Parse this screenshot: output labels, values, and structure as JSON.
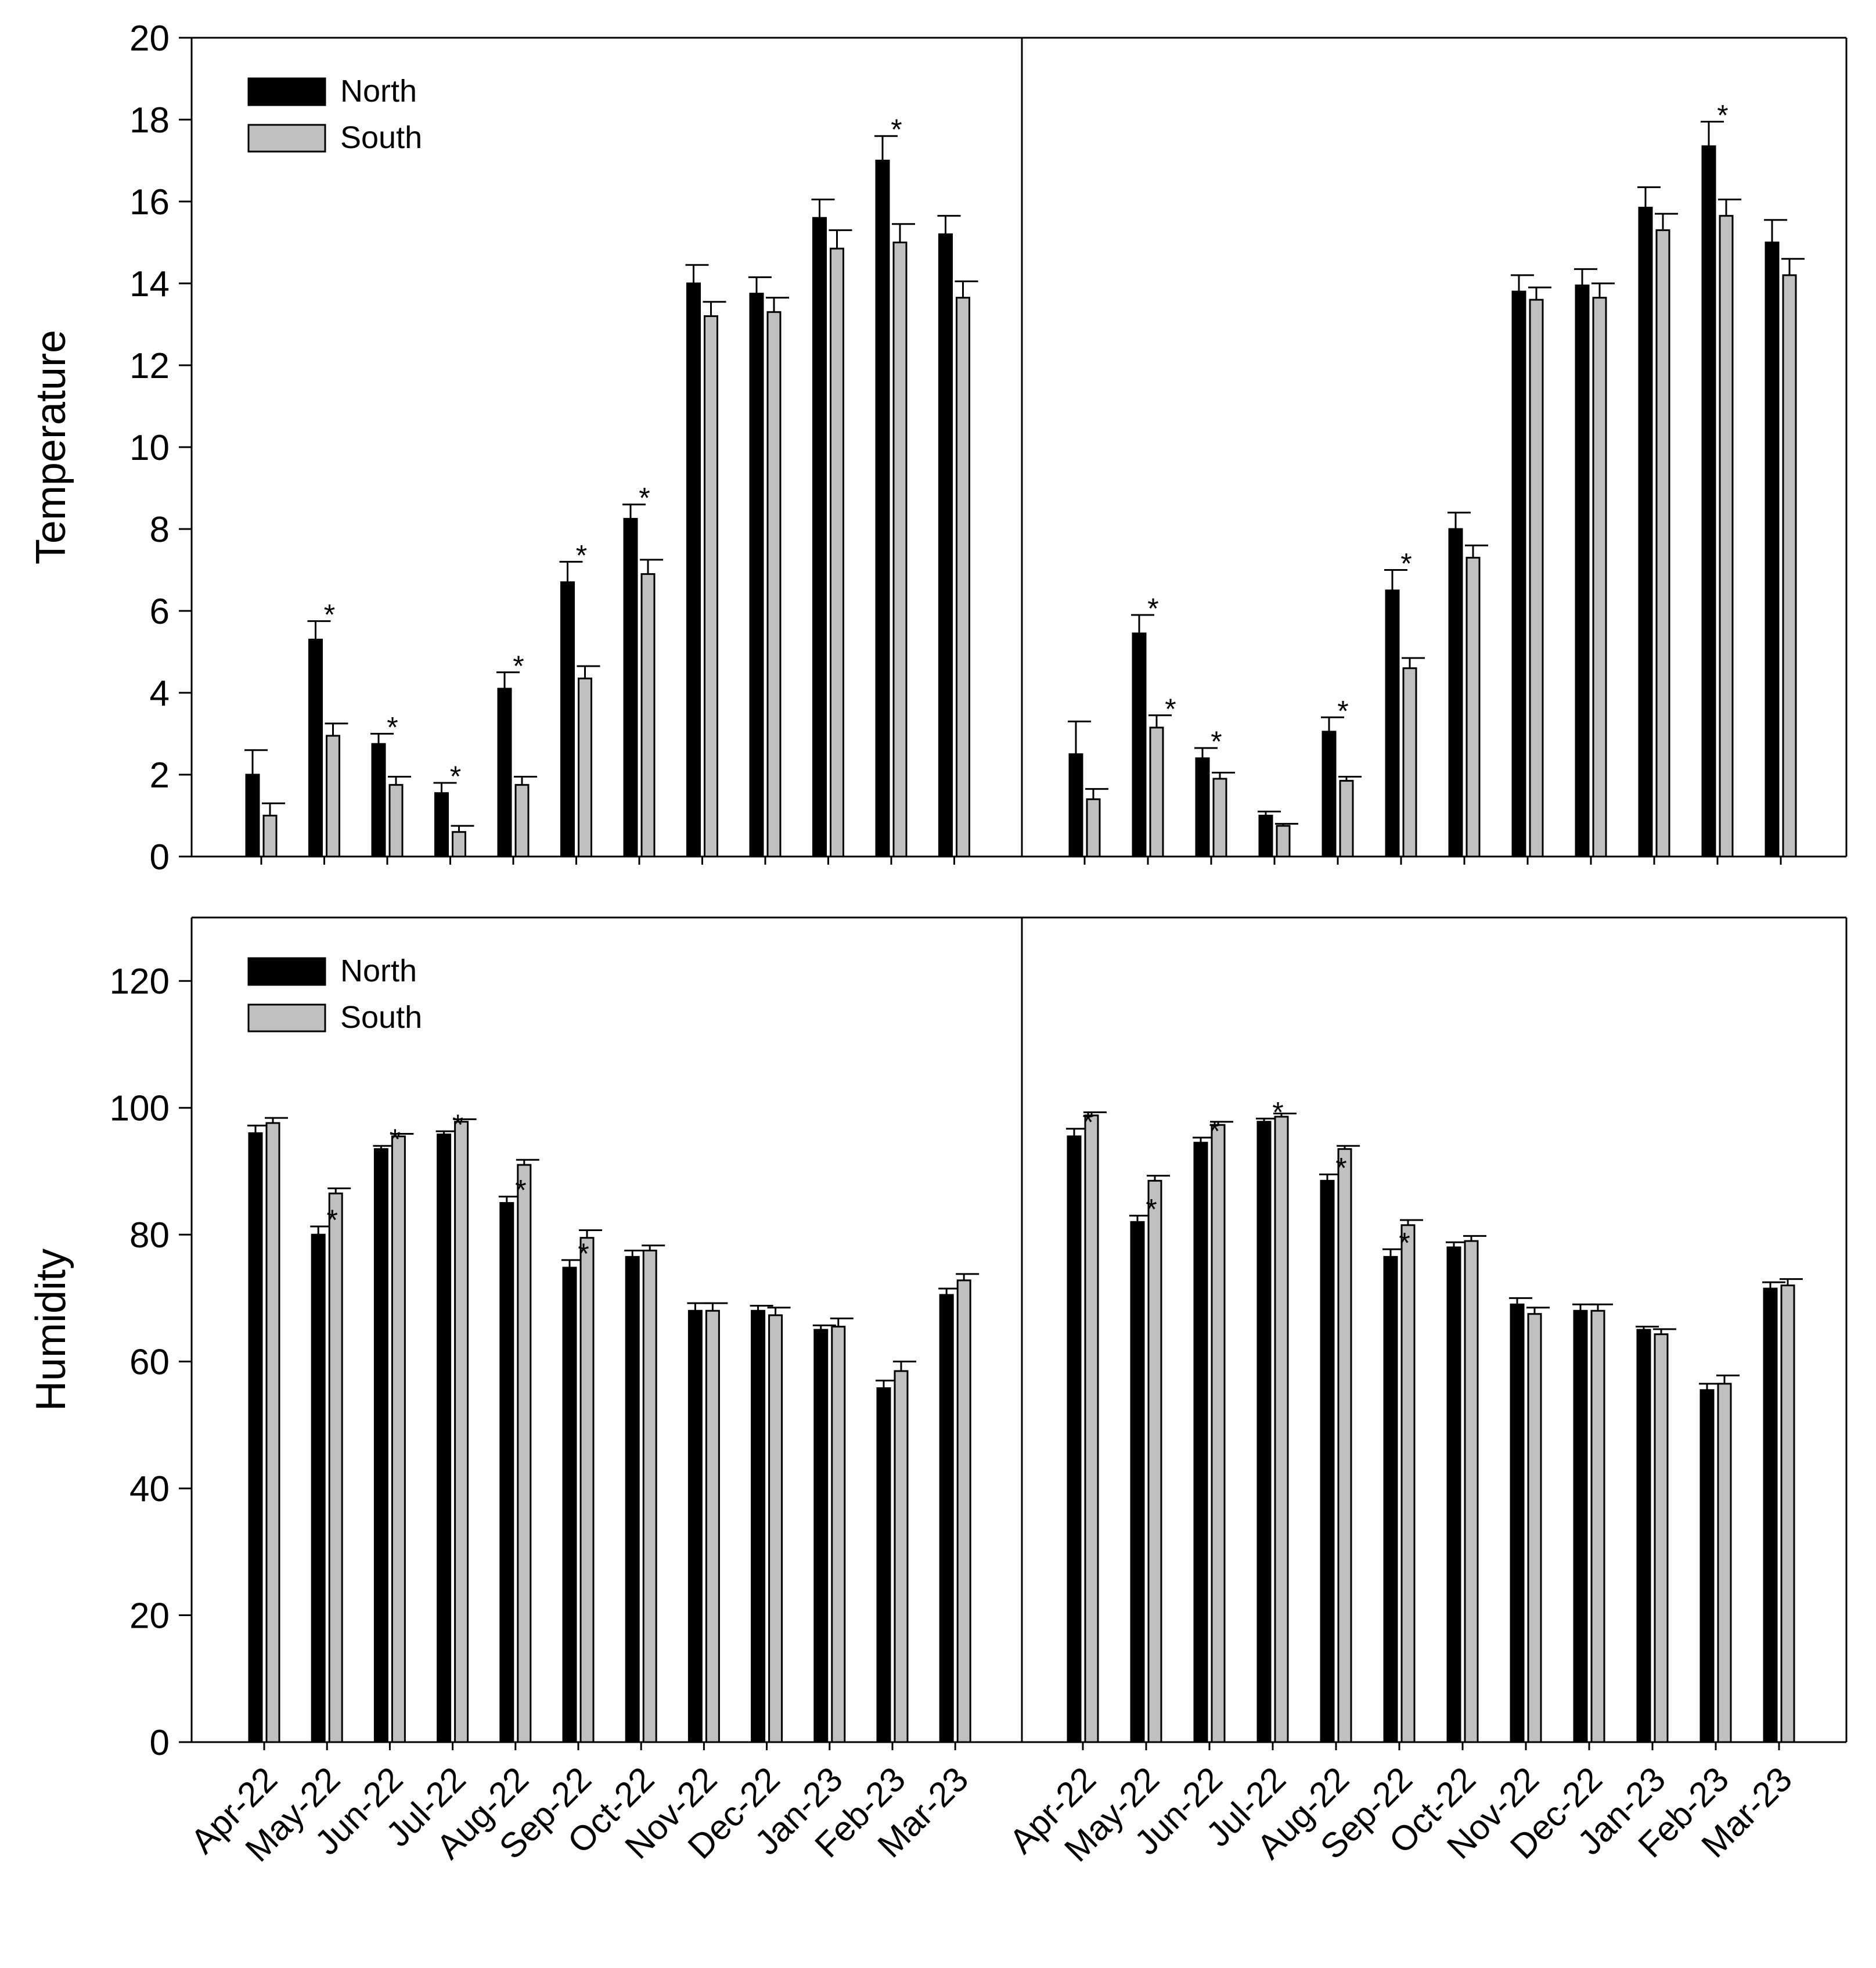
{
  "colors": {
    "north": "#000000",
    "south": "#c0c0c0",
    "axis": "#000000",
    "background": "#ffffff"
  },
  "chart_data": [
    {
      "type": "bar",
      "panel": "top-left",
      "ylabel": "Temperature",
      "ylim": [
        0,
        20
      ],
      "yticks": [
        0,
        2,
        4,
        6,
        8,
        10,
        12,
        14,
        16,
        18,
        20
      ],
      "legend": [
        "North",
        "South"
      ],
      "legend_position": "top-left",
      "categories": [
        "Apr-22",
        "May-22",
        "Jun-22",
        "Jul-22",
        "Aug-22",
        "Sep-22",
        "Oct-22",
        "Nov-22",
        "Dec-22",
        "Jan-23",
        "Feb-23",
        "Mar-23"
      ],
      "series": [
        {
          "name": "North",
          "values": [
            2.0,
            5.3,
            2.75,
            1.55,
            4.1,
            6.7,
            8.25,
            14.0,
            13.75,
            15.6,
            17.0,
            15.2
          ],
          "errors": [
            0.6,
            0.45,
            0.25,
            0.25,
            0.4,
            0.5,
            0.35,
            0.45,
            0.4,
            0.45,
            0.6,
            0.45
          ]
        },
        {
          "name": "South",
          "values": [
            1.0,
            2.95,
            1.75,
            0.6,
            1.75,
            4.35,
            6.9,
            13.2,
            13.3,
            14.85,
            15.0,
            13.65
          ],
          "errors": [
            0.3,
            0.3,
            0.2,
            0.15,
            0.2,
            0.3,
            0.35,
            0.35,
            0.35,
            0.45,
            0.45,
            0.4
          ]
        }
      ],
      "significance": [
        {
          "category": "May-22",
          "series": "North",
          "label": "*"
        },
        {
          "category": "Jun-22",
          "series": "North",
          "label": "*"
        },
        {
          "category": "Jul-22",
          "series": "North",
          "label": "*"
        },
        {
          "category": "Aug-22",
          "series": "North",
          "label": "*"
        },
        {
          "category": "Sep-22",
          "series": "North",
          "label": "*"
        },
        {
          "category": "Oct-22",
          "series": "North",
          "label": "*"
        },
        {
          "category": "Feb-23",
          "series": "North",
          "label": "*"
        }
      ]
    },
    {
      "type": "bar",
      "panel": "top-right",
      "ylabel": "",
      "ylim": [
        0,
        20
      ],
      "legend": [],
      "categories": [
        "Apr-22",
        "May-22",
        "Jun-22",
        "Jul-22",
        "Aug-22",
        "Sep-22",
        "Oct-22",
        "Nov-22",
        "Dec-22",
        "Jan-23",
        "Feb-23",
        "Mar-23"
      ],
      "series": [
        {
          "name": "North",
          "values": [
            2.5,
            5.45,
            2.4,
            1.0,
            3.05,
            6.5,
            8.0,
            13.8,
            13.95,
            15.85,
            17.35,
            15.0
          ],
          "errors": [
            0.8,
            0.45,
            0.25,
            0.1,
            0.35,
            0.5,
            0.4,
            0.4,
            0.4,
            0.5,
            0.6,
            0.55
          ]
        },
        {
          "name": "South",
          "values": [
            1.4,
            3.15,
            1.9,
            0.75,
            1.85,
            4.6,
            7.3,
            13.6,
            13.65,
            15.3,
            15.65,
            14.2
          ],
          "errors": [
            0.25,
            0.3,
            0.15,
            0.05,
            0.1,
            0.25,
            0.3,
            0.3,
            0.35,
            0.4,
            0.4,
            0.4
          ]
        }
      ],
      "significance": [
        {
          "category": "May-22",
          "series": "North",
          "label": "*"
        },
        {
          "category": "May-22",
          "series": "South",
          "label": "*"
        },
        {
          "category": "Jun-22",
          "series": "North",
          "label": "*"
        },
        {
          "category": "Aug-22",
          "series": "North",
          "label": "*"
        },
        {
          "category": "Sep-22",
          "series": "North",
          "label": "*"
        },
        {
          "category": "Feb-23",
          "series": "North",
          "label": "*"
        }
      ]
    },
    {
      "type": "bar",
      "panel": "bottom-left",
      "ylabel": "Humidity",
      "ylim": [
        0,
        130
      ],
      "yticks": [
        0,
        20,
        40,
        60,
        80,
        100,
        120
      ],
      "legend": [
        "North",
        "South"
      ],
      "legend_position": "top-left",
      "categories": [
        "Apr-22",
        "May-22",
        "Jun-22",
        "Jul-22",
        "Aug-22",
        "Sep-22",
        "Oct-22",
        "Nov-22",
        "Dec-22",
        "Jan-23",
        "Feb-23",
        "Mar-23"
      ],
      "series": [
        {
          "name": "North",
          "values": [
            96.0,
            80.0,
            93.5,
            95.8,
            85.0,
            74.8,
            76.5,
            68.0,
            68.0,
            65.0,
            55.8,
            70.5
          ],
          "errors": [
            1.2,
            1.3,
            0.5,
            0.5,
            1.0,
            1.2,
            1.0,
            1.2,
            0.8,
            0.7,
            1.2,
            1.0
          ]
        },
        {
          "name": "South",
          "values": [
            97.6,
            86.5,
            95.5,
            97.8,
            91.0,
            79.5,
            77.5,
            68.0,
            67.3,
            65.5,
            58.5,
            72.8
          ],
          "errors": [
            0.8,
            0.8,
            0.4,
            0.4,
            0.8,
            1.2,
            0.8,
            1.2,
            1.2,
            1.3,
            1.5,
            1.0
          ]
        }
      ],
      "significance": [
        {
          "category": "May-22",
          "series": "North",
          "label": "*"
        },
        {
          "category": "Jun-22",
          "series": "North",
          "label": "*"
        },
        {
          "category": "Jul-22",
          "series": "North",
          "label": "*"
        },
        {
          "category": "Aug-22",
          "series": "North",
          "label": "*"
        },
        {
          "category": "Sep-22",
          "series": "North",
          "label": "*"
        }
      ]
    },
    {
      "type": "bar",
      "panel": "bottom-right",
      "ylabel": "",
      "ylim": [
        0,
        130
      ],
      "legend": [],
      "categories": [
        "Apr-22",
        "May-22",
        "Jun-22",
        "Jul-22",
        "Aug-22",
        "Sep-22",
        "Oct-22",
        "Nov-22",
        "Dec-22",
        "Jan-23",
        "Feb-23",
        "Mar-23"
      ],
      "series": [
        {
          "name": "North",
          "values": [
            95.5,
            82.0,
            94.5,
            97.8,
            88.5,
            76.5,
            78.0,
            69.0,
            68.0,
            65.0,
            55.5,
            71.5
          ],
          "errors": [
            1.2,
            1.0,
            0.8,
            0.5,
            1.0,
            1.2,
            0.8,
            1.0,
            1.0,
            0.5,
            1.0,
            1.0
          ]
        },
        {
          "name": "South",
          "values": [
            98.8,
            88.5,
            97.3,
            98.6,
            93.5,
            81.5,
            79.0,
            67.5,
            68.0,
            64.3,
            56.5,
            72.0
          ],
          "errors": [
            0.5,
            0.8,
            0.5,
            0.5,
            0.5,
            0.8,
            0.8,
            1.0,
            1.0,
            0.8,
            1.3,
            1.0
          ]
        }
      ],
      "significance": [
        {
          "category": "Apr-22",
          "series": "North",
          "label": "*"
        },
        {
          "category": "May-22",
          "series": "North",
          "label": "*"
        },
        {
          "category": "Jun-22",
          "series": "North",
          "label": "*"
        },
        {
          "category": "Jul-22",
          "series": "North",
          "label": "*"
        },
        {
          "category": "Aug-22",
          "series": "North",
          "label": "*"
        },
        {
          "category": "Sep-22",
          "series": "North",
          "label": "*"
        }
      ]
    }
  ]
}
